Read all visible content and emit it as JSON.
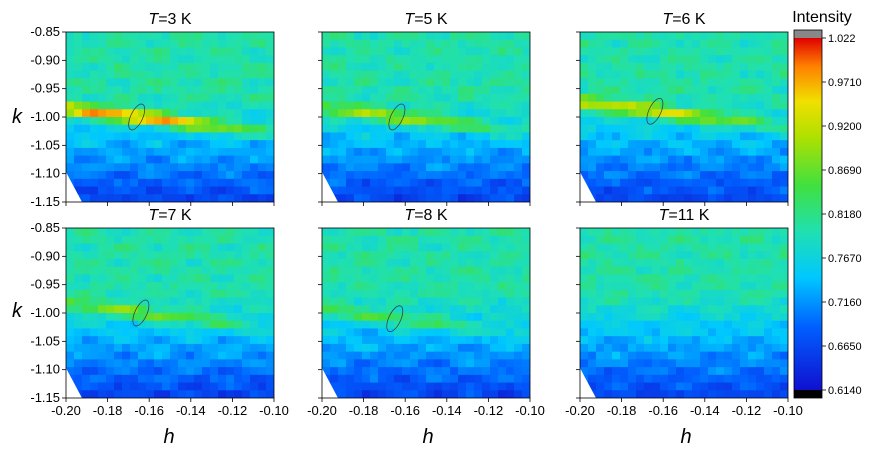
{
  "chart_data": {
    "type": "heatmap",
    "panels": [
      {
        "title_var": "T",
        "title_value": "=3 K",
        "temperature_K": 3,
        "peak": {
          "h": -0.166,
          "k": -1.0,
          "value": 1.022
        }
      },
      {
        "title_var": "T",
        "title_value": "=5 K",
        "temperature_K": 5,
        "peak": {
          "h": -0.164,
          "k": -1.0,
          "value": 0.93
        }
      },
      {
        "title_var": "T",
        "title_value": "=6 K",
        "temperature_K": 6,
        "peak": {
          "h": -0.164,
          "k": -0.99,
          "value": 0.96
        }
      },
      {
        "title_var": "T",
        "title_value": "=7 K",
        "temperature_K": 7,
        "peak": {
          "h": -0.164,
          "k": -1.0,
          "value": 0.91
        }
      },
      {
        "title_var": "T",
        "title_value": "=8 K",
        "temperature_K": 8,
        "peak": {
          "h": -0.165,
          "k": -1.01,
          "value": 0.88
        }
      },
      {
        "title_var": "T",
        "title_value": "=11 K",
        "temperature_K": 11,
        "peak": null
      }
    ],
    "xlabel": "h",
    "ylabel": "k",
    "xlim": [
      -0.2,
      -0.1
    ],
    "ylim": [
      -1.15,
      -0.85
    ],
    "x_ticks": [
      "-0.20",
      "-0.18",
      "-0.16",
      "-0.14",
      "-0.12",
      "-0.10"
    ],
    "y_ticks": [
      "-0.85",
      "-0.90",
      "-0.95",
      "-1.00",
      "-1.05",
      "-1.10",
      "-1.15"
    ],
    "colorbar": {
      "title": "Intensity",
      "ticks": [
        "1.022",
        "0.9710",
        "0.9200",
        "0.8690",
        "0.8180",
        "0.7670",
        "0.7160",
        "0.6650",
        "0.6140"
      ],
      "range": [
        0.614,
        1.022
      ]
    },
    "colors": {
      "low": "#1a1ae0",
      "mid_low": "#00c8ff",
      "mid": "#44e644",
      "mid_high": "#e6e600",
      "high": "#e60000",
      "over": "#888888",
      "under": "#000000"
    }
  }
}
